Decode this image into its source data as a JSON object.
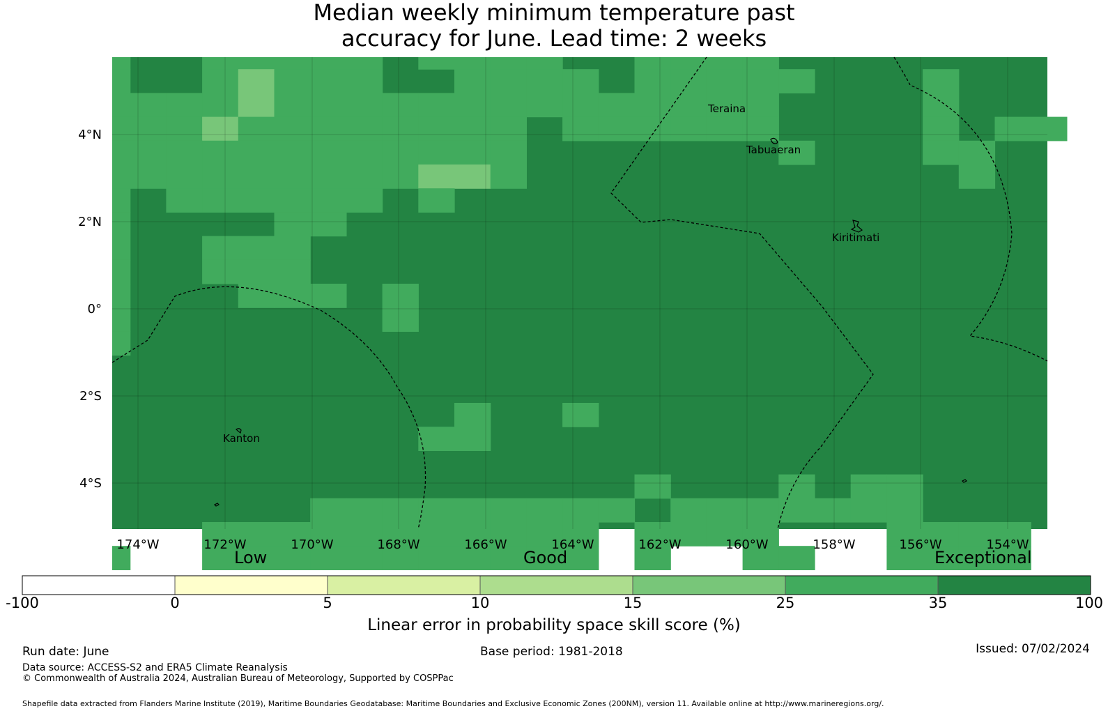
{
  "title": {
    "line1": "Median weekly minimum temperature past",
    "line2": "accuracy for June. Lead time: 2 weeks"
  },
  "map": {
    "lon_ticks": [
      "174°W",
      "172°W",
      "170°W",
      "168°W",
      "166°W",
      "164°W",
      "162°W",
      "160°W",
      "158°W",
      "156°W",
      "154°W"
    ],
    "lat_ticks": [
      "4°N",
      "2°N",
      "0°",
      "2°S",
      "4°S"
    ],
    "places": [
      "Teraina",
      "Tabuaeran",
      "Kiritimati",
      "Kanton"
    ],
    "gridlines": true
  },
  "colorbar": {
    "qualitative": [
      "Low",
      "Good",
      "Exceptional"
    ],
    "ticks": [
      "-100",
      "0",
      "5",
      "10",
      "15",
      "25",
      "35",
      "100"
    ],
    "colors": [
      "#ffffff",
      "#ffffcc",
      "#d9f0a3",
      "#addd8e",
      "#78c679",
      "#41ab5d",
      "#238443"
    ],
    "label": "Linear error in probability space skill score (%)"
  },
  "footer": {
    "run_date": "Run date: June",
    "base_period": "Base period: 1981-2018",
    "issued": "Issued: 07/02/2024",
    "data_source": "Data source: ACCESS-S2 and ERA5 Climate Reanalysis",
    "copyright": "© Commonwealth of Australia 2024, Australian Bureau of Meteorology, Supported by COSPPac",
    "shapefile": "Shapefile data extracted from Flanders Marine Institute (2019), Maritime Boundaries Geodatabase: Maritime Boundaries and Exclusive Economic Zones (200NM), version 11. Available online at http://www.marineregions.org/."
  }
}
